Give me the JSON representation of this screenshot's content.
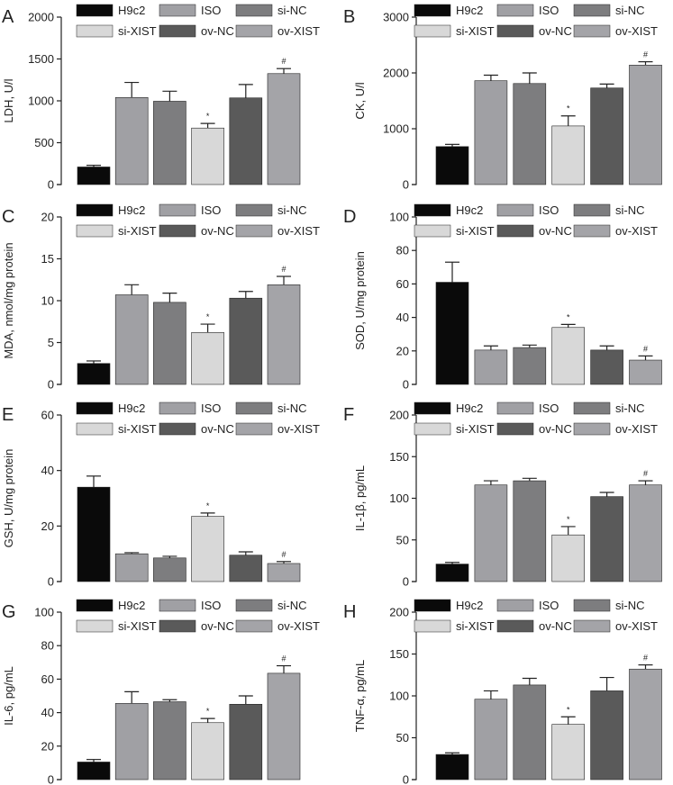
{
  "groups": [
    "H9c2",
    "ISO",
    "si-NC",
    "si-XIST",
    "ov-NC",
    "ov-XIST"
  ],
  "group_colors": [
    "#0a0a0a",
    "#a0a0a4",
    "#7d7d7f",
    "#d8d8d8",
    "#5a5a5a",
    "#a4a4a8"
  ],
  "chart_data": [
    {
      "panel": "A",
      "type": "bar",
      "ylabel": "LDH, U/l",
      "ylim": [
        0,
        2000
      ],
      "yticks": [
        0,
        500,
        1000,
        1500,
        2000
      ],
      "tick_labels": [
        "0",
        "500",
        "1000",
        "1500",
        "2000"
      ],
      "categories": [
        "H9c2",
        "ISO",
        "si-NC",
        "si-XIST",
        "ov-NC",
        "ov-XIST"
      ],
      "values": [
        210,
        1040,
        995,
        675,
        1035,
        1325
      ],
      "errors": [
        20,
        180,
        120,
        55,
        160,
        60
      ],
      "marks": [
        "",
        "",
        "",
        "*",
        "",
        "#"
      ]
    },
    {
      "panel": "B",
      "type": "bar",
      "ylabel": "CK, U/l",
      "ylim": [
        0,
        3000
      ],
      "yticks": [
        0,
        1000,
        2000,
        3000
      ],
      "tick_labels": [
        "0",
        "1000",
        "2000",
        "3000"
      ],
      "categories": [
        "H9c2",
        "ISO",
        "si-NC",
        "si-XIST",
        "ov-NC",
        "ov-XIST"
      ],
      "values": [
        680,
        1860,
        1810,
        1050,
        1730,
        2140
      ],
      "errors": [
        40,
        100,
        190,
        180,
        70,
        60
      ],
      "marks": [
        "",
        "",
        "",
        "*",
        "",
        "#"
      ]
    },
    {
      "panel": "C",
      "type": "bar",
      "ylabel": "MDA, nmol/mg protein",
      "ylim": [
        0,
        20
      ],
      "yticks": [
        0,
        5,
        10,
        15,
        20
      ],
      "tick_labels": [
        "0",
        "5",
        "10",
        "15",
        "20"
      ],
      "categories": [
        "H9c2",
        "ISO",
        "si-NC",
        "si-XIST",
        "ov-NC",
        "ov-XIST"
      ],
      "values": [
        2.5,
        10.7,
        9.8,
        6.2,
        10.3,
        11.9
      ],
      "errors": [
        0.3,
        1.2,
        1.1,
        1.0,
        0.8,
        1.0
      ],
      "marks": [
        "",
        "",
        "",
        "*",
        "",
        "#"
      ]
    },
    {
      "panel": "D",
      "type": "bar",
      "ylabel": "SOD, U/mg protein",
      "ylim": [
        0,
        100
      ],
      "yticks": [
        0,
        20,
        40,
        60,
        80,
        100
      ],
      "tick_labels": [
        "0",
        "20",
        "40",
        "60",
        "80",
        "100"
      ],
      "categories": [
        "H9c2",
        "ISO",
        "si-NC",
        "si-XIST",
        "ov-NC",
        "ov-XIST"
      ],
      "values": [
        61,
        20.5,
        22,
        34,
        20.5,
        14.5
      ],
      "errors": [
        12,
        2.5,
        1.5,
        1.8,
        2.5,
        2.5
      ],
      "marks": [
        "",
        "",
        "",
        "*",
        "",
        "#"
      ]
    },
    {
      "panel": "E",
      "type": "bar",
      "ylabel": "GSH, U/mg protein",
      "ylim": [
        0,
        60
      ],
      "yticks": [
        0,
        20,
        40,
        60
      ],
      "tick_labels": [
        "0",
        "20",
        "40",
        "60"
      ],
      "categories": [
        "H9c2",
        "ISO",
        "si-NC",
        "si-XIST",
        "ov-NC",
        "ov-XIST"
      ],
      "values": [
        34,
        10,
        8.5,
        23.5,
        9.5,
        6.5
      ],
      "errors": [
        4,
        0.4,
        0.6,
        1.2,
        1.2,
        0.7
      ],
      "marks": [
        "",
        "",
        "",
        "*",
        "",
        "#"
      ]
    },
    {
      "panel": "F",
      "type": "bar",
      "ylabel": "IL-1β, pg/mL",
      "ylim": [
        0,
        200
      ],
      "yticks": [
        0,
        50,
        100,
        150,
        200
      ],
      "tick_labels": [
        "0",
        "50",
        "100",
        "150",
        "200"
      ],
      "categories": [
        "H9c2",
        "ISO",
        "si-NC",
        "si-XIST",
        "ov-NC",
        "ov-XIST"
      ],
      "values": [
        21,
        116,
        121,
        56,
        102,
        116
      ],
      "errors": [
        2,
        5,
        3,
        10,
        5,
        5
      ],
      "marks": [
        "",
        "",
        "",
        "*",
        "",
        "#"
      ]
    },
    {
      "panel": "G",
      "type": "bar",
      "ylabel": "IL-6, pg/mL",
      "ylim": [
        0,
        100
      ],
      "yticks": [
        0,
        20,
        40,
        60,
        80,
        100
      ],
      "tick_labels": [
        "0",
        "20",
        "40",
        "60",
        "80",
        "100"
      ],
      "categories": [
        "H9c2",
        "ISO",
        "si-NC",
        "si-XIST",
        "ov-NC",
        "ov-XIST"
      ],
      "values": [
        10.5,
        45.5,
        46.5,
        34,
        45,
        63.5
      ],
      "errors": [
        1.5,
        7,
        1.2,
        2.5,
        5,
        4.5
      ],
      "marks": [
        "",
        "",
        "",
        "*",
        "",
        "#"
      ]
    },
    {
      "panel": "H",
      "type": "bar",
      "ylabel": "TNF-α, pg/mL",
      "ylim": [
        0,
        200
      ],
      "yticks": [
        0,
        50,
        100,
        150,
        200
      ],
      "tick_labels": [
        "0",
        "50",
        "100",
        "150",
        "200"
      ],
      "categories": [
        "H9c2",
        "ISO",
        "si-NC",
        "si-XIST",
        "ov-NC",
        "ov-XIST"
      ],
      "values": [
        30,
        96,
        113,
        66,
        106,
        132
      ],
      "errors": [
        2,
        10,
        8,
        9,
        16,
        5
      ],
      "marks": [
        "",
        "",
        "",
        "*",
        "",
        "#"
      ]
    }
  ]
}
